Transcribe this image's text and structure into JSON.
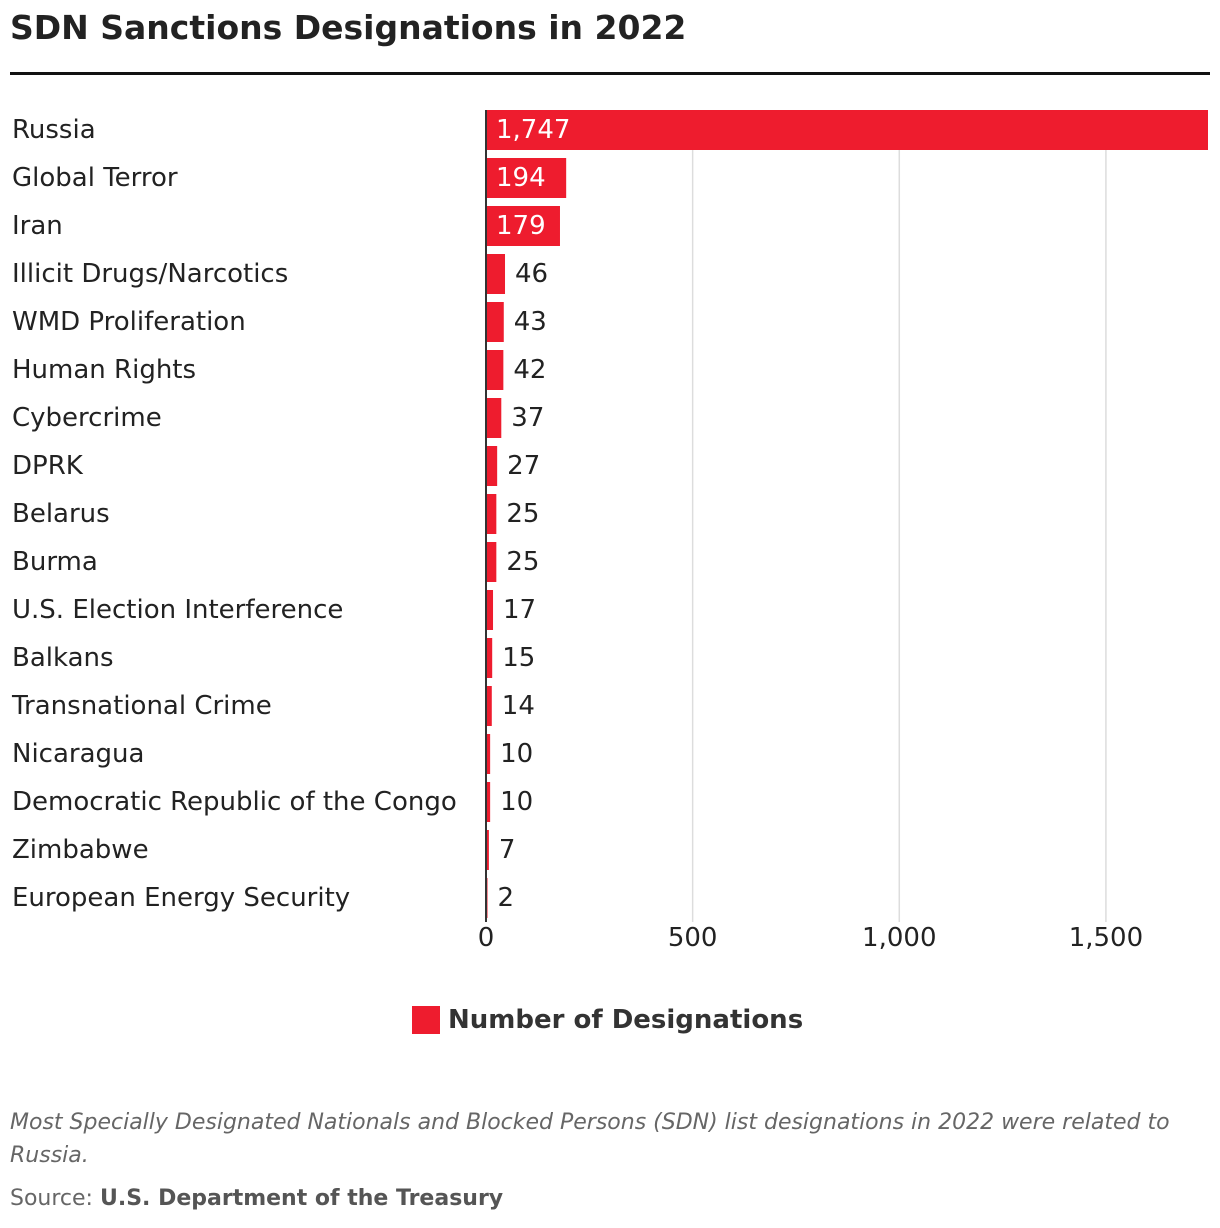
{
  "title": "SDN Sanctions Designations in 2022",
  "colors": {
    "bar": "#ee1c2e",
    "grid": "#dddddd",
    "axis": "#333333",
    "title_rule": "#111111"
  },
  "legend": {
    "label": "Number of Designations"
  },
  "note": "Most Specially Designated Nationals and Blocked Persons (SDN) list designations in 2022 were related to Russia.",
  "source": {
    "prefix": "Source:",
    "name": "U.S. Department of the Treasury"
  },
  "chart_data": {
    "type": "bar",
    "orientation": "horizontal",
    "categories": [
      "Russia",
      "Global Terror",
      "Iran",
      "Illicit Drugs/Narcotics",
      "WMD Proliferation",
      "Human Rights",
      "Cybercrime",
      "DPRK",
      "Belarus",
      "Burma",
      "U.S. Election Interference",
      "Balkans",
      "Transnational Crime",
      "Nicaragua",
      "Democratic Republic of the Congo",
      "Zimbabwe",
      "European Energy Security"
    ],
    "series": [
      {
        "name": "Number of Designations",
        "values": [
          1747,
          194,
          179,
          46,
          43,
          42,
          37,
          27,
          25,
          25,
          17,
          15,
          14,
          10,
          10,
          7,
          2
        ]
      }
    ],
    "data_labels": [
      "1,747",
      "194",
      "179",
      "46",
      "43",
      "42",
      "37",
      "27",
      "25",
      "25",
      "17",
      "15",
      "14",
      "10",
      "10",
      "7",
      "2"
    ],
    "xlim": [
      0,
      1747
    ],
    "xticks": [
      0,
      500,
      1000,
      1500
    ],
    "xtick_labels": [
      "0",
      "500",
      "1,000",
      "1,500"
    ],
    "grid": true,
    "legend_position": "bottom-center"
  }
}
